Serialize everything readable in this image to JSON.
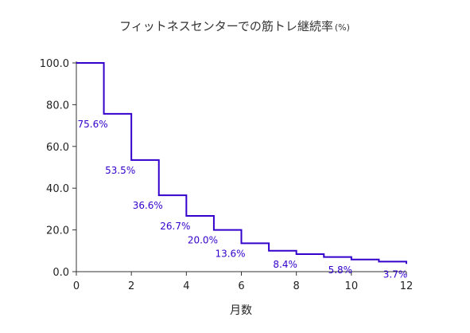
{
  "chart_data": {
    "type": "line",
    "title": "フィットネスセンターでの筋トレ継続率",
    "title_unit": "(%)",
    "xlabel": "月数",
    "ylabel": "",
    "xlim": [
      0,
      12
    ],
    "ylim": [
      0,
      100
    ],
    "x_ticks": [
      0,
      2,
      4,
      6,
      8,
      10,
      12
    ],
    "y_ticks": [
      "0.0",
      "20.0",
      "40.0",
      "60.0",
      "80.0",
      "100.0"
    ],
    "step": true,
    "series": [
      {
        "x": [
          0,
          1,
          2,
          3,
          4,
          5,
          6,
          7,
          8,
          9,
          10,
          11,
          12
        ],
        "values": [
          100.0,
          75.6,
          53.5,
          36.6,
          26.7,
          20.0,
          13.6,
          10.0,
          8.4,
          7.0,
          5.8,
          4.8,
          3.7
        ]
      }
    ],
    "data_labels": [
      {
        "x": 1,
        "value": 75.6,
        "text": "75.6%"
      },
      {
        "x": 2,
        "value": 53.5,
        "text": "53.5%"
      },
      {
        "x": 3,
        "value": 36.6,
        "text": "36.6%"
      },
      {
        "x": 4,
        "value": 26.7,
        "text": "26.7%"
      },
      {
        "x": 5,
        "value": 20.0,
        "text": "20.0%"
      },
      {
        "x": 6,
        "value": 13.6,
        "text": "13.6%"
      },
      {
        "x": 8,
        "value": 8.4,
        "text": "8.4%"
      },
      {
        "x": 10,
        "value": 5.8,
        "text": "5.8%"
      },
      {
        "x": 12,
        "value": 3.7,
        "text": "3.7%"
      }
    ],
    "line_color": "#3300cc",
    "grid": false
  }
}
